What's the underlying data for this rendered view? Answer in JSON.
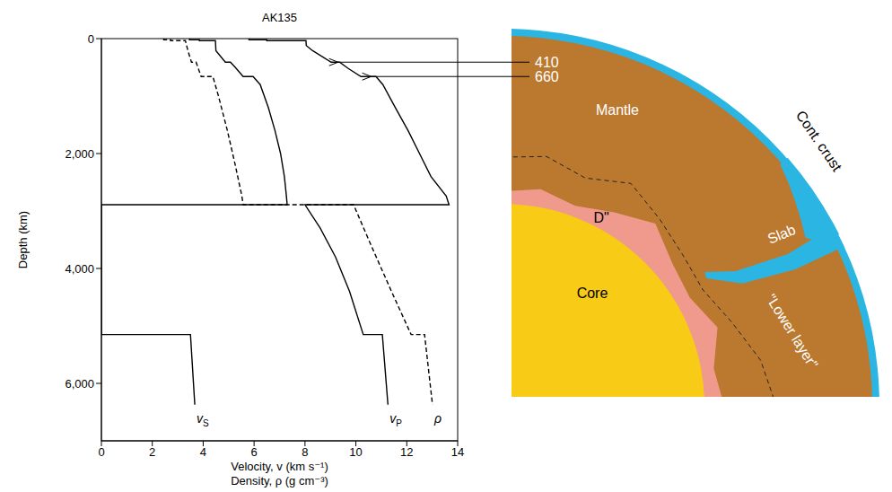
{
  "chart_data": {
    "type": "line",
    "title": "AK135",
    "x_label": "Velocity, v (km s⁻¹)",
    "x_label_2": "Density, ρ (g cm⁻³)",
    "y_label": "Depth (km)",
    "xlim": [
      0,
      14
    ],
    "xticks": [
      0,
      2,
      4,
      6,
      8,
      10,
      12,
      14
    ],
    "ylim": [
      0,
      7000
    ],
    "yticks": [
      0,
      {
        "value": 2000,
        "label": "2,000"
      },
      {
        "value": 4000,
        "label": "4,000"
      },
      {
        "value": 6000,
        "label": "6,000"
      }
    ],
    "series": [
      {
        "name": "vS",
        "color": "#000000",
        "line_style": "solid",
        "x": [
          3.46,
          3.46,
          3.85,
          3.85,
          4.48,
          4.49,
          4.5,
          4.87,
          5.07,
          5.26,
          5.57,
          5.96,
          6.24,
          6.56,
          6.82,
          7.04,
          7.19,
          7.27,
          7.3,
          0,
          0,
          3.5,
          3.67
        ],
        "y": [
          0,
          20,
          20,
          35,
          35,
          120,
          210,
          410,
          410,
          500,
          660,
          660,
          800,
          1200,
          1600,
          2000,
          2400,
          2740,
          2891,
          2891,
          5150,
          5150,
          6371
        ]
      },
      {
        "name": "vP",
        "color": "#000000",
        "line_style": "solid",
        "x": [
          5.8,
          5.8,
          6.5,
          6.5,
          8.04,
          8.05,
          8.3,
          9.03,
          9.36,
          9.7,
          10.2,
          10.79,
          11.06,
          11.55,
          12.05,
          12.5,
          12.95,
          13.55,
          13.66,
          8.0,
          8.6,
          9.2,
          9.75,
          10.29,
          11.04,
          11.26
        ],
        "y": [
          0,
          20,
          20,
          35,
          35,
          120,
          210,
          410,
          410,
          520,
          660,
          660,
          800,
          1200,
          1600,
          2000,
          2400,
          2740,
          2891,
          2891,
          3300,
          3800,
          4400,
          5150,
          5150,
          6371
        ]
      },
      {
        "name": "ρ",
        "color": "#000000",
        "line_style": "dashed",
        "x": [
          2.45,
          2.45,
          2.72,
          2.72,
          3.3,
          3.4,
          3.54,
          3.72,
          3.92,
          4.38,
          4.6,
          4.95,
          5.26,
          5.52,
          5.57,
          9.91,
          10.6,
          11.4,
          12.17,
          12.7,
          13.01
        ],
        "y": [
          0,
          20,
          20,
          35,
          35,
          210,
          410,
          410,
          660,
          660,
          1000,
          1600,
          2200,
          2740,
          2891,
          2891,
          3600,
          4400,
          5150,
          5150,
          6371
        ]
      }
    ]
  },
  "diagram": {
    "labels": {
      "mantle": "Mantle",
      "crust": "Cont. crust",
      "slab": "Slab",
      "d2": "D\"",
      "core": "Core",
      "lower": "\"Lower layer\""
    },
    "arrows": [
      {
        "label": "410",
        "depth": 410
      },
      {
        "label": "660",
        "depth": 660
      }
    ]
  }
}
